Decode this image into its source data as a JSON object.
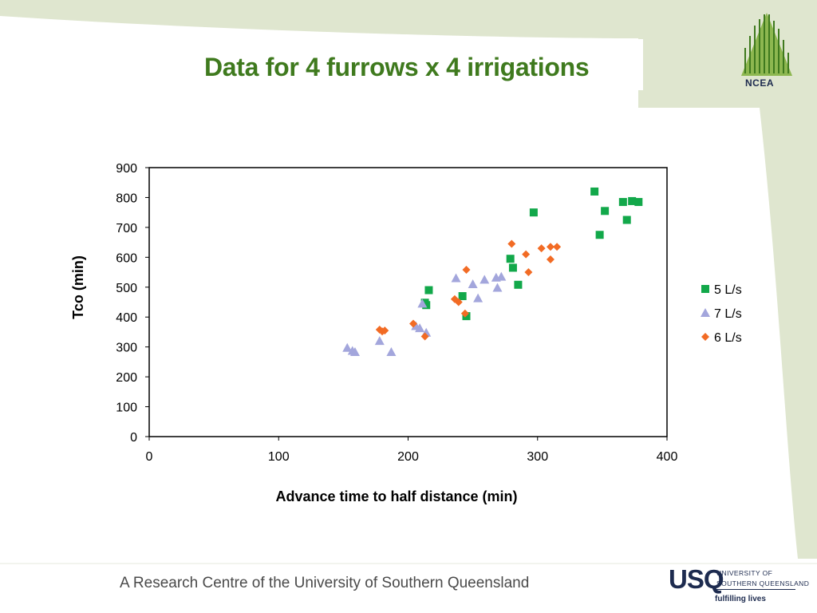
{
  "slide": {
    "title": "Data for 4 furrows x 4 irrigations",
    "footer": "A Research Centre of the University of Southern Queensland",
    "ncea_logo": {
      "label": "NCEA"
    },
    "usq_logo": {
      "word": "USQ",
      "line1": "UNIVERSITY OF",
      "line2": "SOUTHERN QUEENSLAND",
      "tagline": "fulfilling lives"
    },
    "colors": {
      "title_green": "#3f7a1e",
      "background_band": "#dfe6cf",
      "logo_green": "#6a9a2e",
      "usq_navy": "#1d2b4f"
    }
  },
  "chart_data": {
    "type": "scatter",
    "title": "",
    "xlabel": "Advance time to half distance (min)",
    "ylabel": "Tco (min)",
    "xlim": [
      0,
      400
    ],
    "ylim": [
      0,
      900
    ],
    "x_ticks": [
      0,
      100,
      200,
      300,
      400
    ],
    "y_ticks": [
      0,
      100,
      200,
      300,
      400,
      500,
      600,
      700,
      800,
      900
    ],
    "grid": false,
    "legend_position": "right",
    "series": [
      {
        "name": "5 L/s",
        "marker": "square",
        "color": "#12a84a",
        "points": [
          [
            213,
            448
          ],
          [
            214,
            440
          ],
          [
            216,
            490
          ],
          [
            242,
            470
          ],
          [
            245,
            403
          ],
          [
            279,
            595
          ],
          [
            281,
            565
          ],
          [
            285,
            508
          ],
          [
            297,
            750
          ],
          [
            344,
            820
          ],
          [
            348,
            675
          ],
          [
            352,
            755
          ],
          [
            366,
            785
          ],
          [
            369,
            725
          ],
          [
            373,
            788
          ],
          [
            378,
            785
          ]
        ]
      },
      {
        "name": "7 L/s",
        "marker": "triangle",
        "color": "#a3a6dc",
        "points": [
          [
            153,
            297
          ],
          [
            157,
            287
          ],
          [
            159,
            283
          ],
          [
            178,
            320
          ],
          [
            187,
            283
          ],
          [
            206,
            370
          ],
          [
            209,
            363
          ],
          [
            211,
            445
          ],
          [
            214,
            348
          ],
          [
            237,
            530
          ],
          [
            250,
            510
          ],
          [
            254,
            463
          ],
          [
            259,
            525
          ],
          [
            268,
            532
          ],
          [
            269,
            498
          ],
          [
            272,
            535
          ]
        ]
      },
      {
        "name": "6 L/s",
        "marker": "diamond",
        "color": "#f26b24",
        "points": [
          [
            178,
            358
          ],
          [
            180,
            352
          ],
          [
            182,
            355
          ],
          [
            204,
            378
          ],
          [
            213,
            335
          ],
          [
            236,
            460
          ],
          [
            239,
            450
          ],
          [
            244,
            412
          ],
          [
            245,
            558
          ],
          [
            280,
            645
          ],
          [
            291,
            610
          ],
          [
            293,
            550
          ],
          [
            303,
            630
          ],
          [
            310,
            635
          ],
          [
            310,
            593
          ],
          [
            315,
            635
          ]
        ]
      }
    ]
  }
}
